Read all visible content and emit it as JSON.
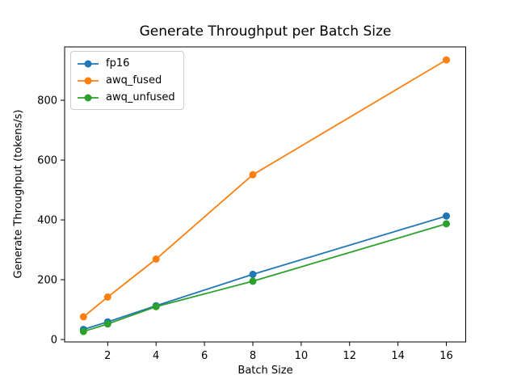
{
  "figure": {
    "background": "#ffffff"
  },
  "chart_data": {
    "type": "line",
    "title": "Generate Throughput per Batch Size",
    "xlabel": "Batch Size",
    "ylabel": "Generate Throughput (tokens/s)",
    "x": [
      1,
      2,
      4,
      8,
      16
    ],
    "series": [
      {
        "name": "fp16",
        "color": "#1f77b4",
        "values": [
          34,
          59,
          113,
          218,
          413
        ]
      },
      {
        "name": "awq_fused",
        "color": "#ff7f0e",
        "values": [
          76,
          142,
          269,
          551,
          935
        ]
      },
      {
        "name": "awq_unfused",
        "color": "#2ca02c",
        "values": [
          27,
          52,
          110,
          195,
          387
        ]
      }
    ],
    "marker": "o",
    "xticks": [
      2,
      4,
      6,
      8,
      10,
      12,
      14,
      16
    ],
    "yticks": [
      0,
      200,
      400,
      600,
      800
    ],
    "xlim": [
      0.22,
      16.8
    ],
    "ylim": [
      -8,
      978.5
    ],
    "grid": false,
    "legend_position": "upper left",
    "axis_color": "#000000"
  }
}
